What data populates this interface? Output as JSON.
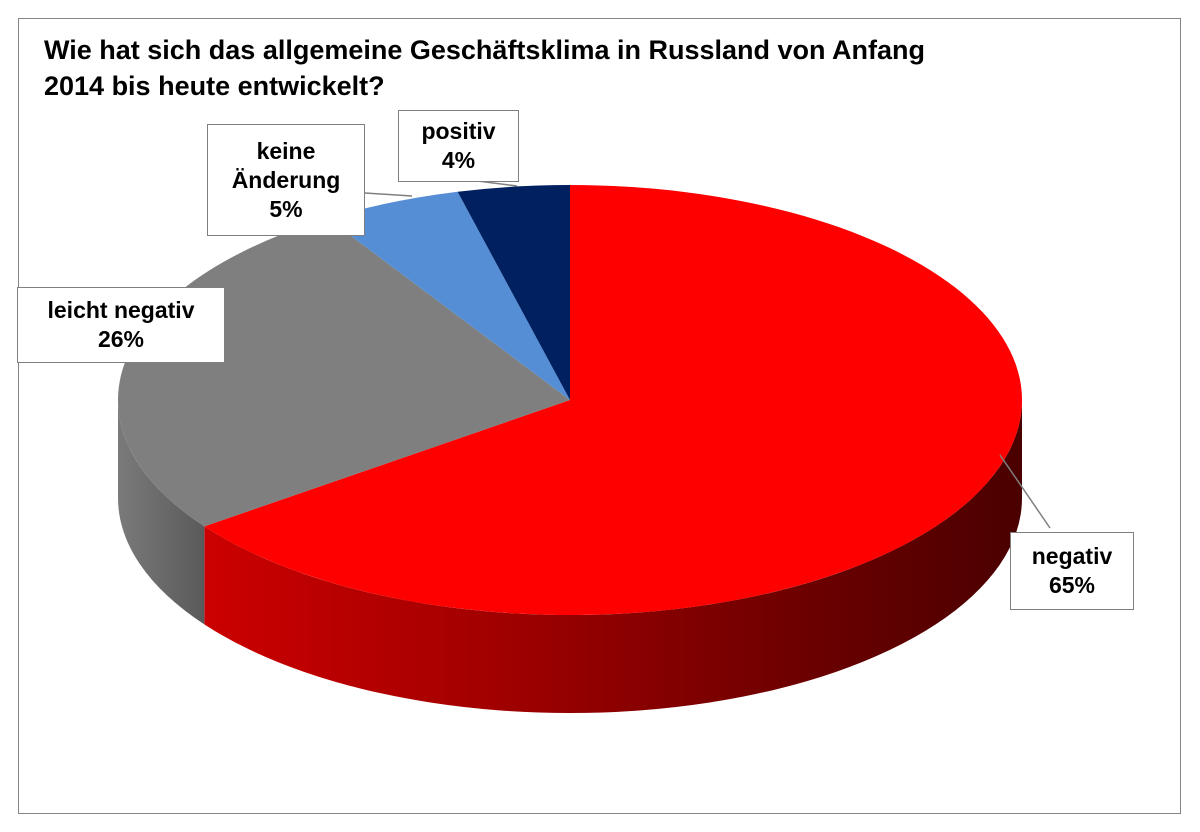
{
  "chart_data": {
    "type": "pie",
    "title": "Wie hat sich das allgemeine Geschäftsklima in Russland von Anfang 2014 bis heute entwickelt?",
    "slices": [
      {
        "label": "negativ",
        "value": 65,
        "value_label": "65%",
        "color": "#ff0000"
      },
      {
        "label": "leicht negativ",
        "value": 26,
        "value_label": "26%",
        "color": "#7f7f7f"
      },
      {
        "label": "keine Änderung",
        "value": 5,
        "value_label": "5%",
        "color": "#558ed5"
      },
      {
        "label": "positiv",
        "value": 4,
        "value_label": "4%",
        "color": "#002060"
      }
    ],
    "label_lines": {
      "keine_1": "keine",
      "keine_2": "Änderung"
    }
  }
}
